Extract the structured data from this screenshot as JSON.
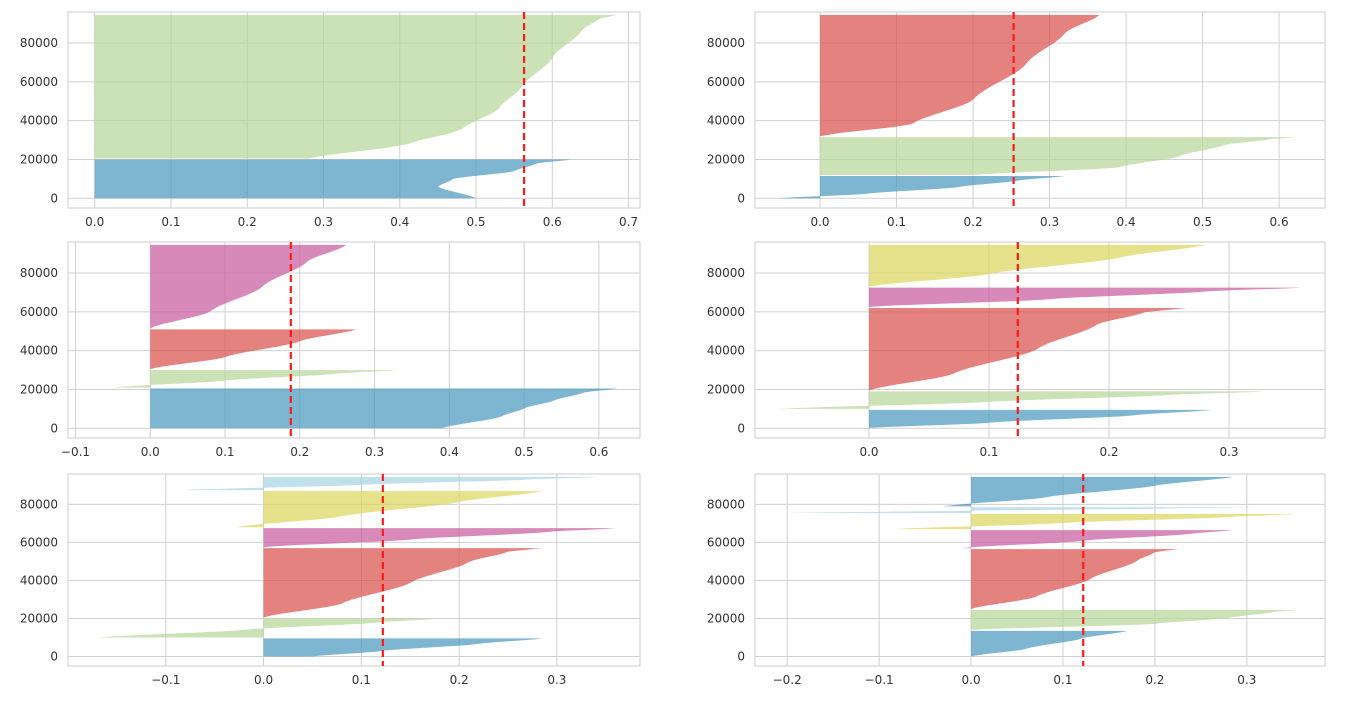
{
  "colors": {
    "cluster_palette": [
      "#4c9abf",
      "#b7d69a",
      "#d9524f",
      "#c75d9f",
      "#dcd760",
      "#a8d4e3"
    ],
    "average_line": "#ff1a1a",
    "grid": "#d0d0d0"
  },
  "chart_data": [
    {
      "type": "area",
      "ylim": [
        -5000,
        96000
      ],
      "xlim": [
        -0.035,
        0.715
      ],
      "xticks": [
        0.0,
        0.1,
        0.2,
        0.3,
        0.4,
        0.5,
        0.6,
        0.7
      ],
      "yticks": [
        0,
        20000,
        40000,
        60000,
        80000
      ],
      "average_silhouette": 0.563,
      "clusters": [
        {
          "color_index": 0,
          "y_start": 0,
          "y_end": 20000,
          "min": 0.0,
          "max": 0.625,
          "profile": [
            [
              0,
              0.5
            ],
            [
              0.3,
              0.45
            ],
            [
              0.5,
              0.47
            ],
            [
              0.7,
              0.55
            ],
            [
              0.9,
              0.58
            ],
            [
              1,
              0.625
            ]
          ]
        },
        {
          "color_index": 1,
          "y_start": 20500,
          "y_end": 94500,
          "min": 0.0,
          "max": 0.685,
          "profile": [
            [
              0,
              0.28
            ],
            [
              0.1,
              0.41
            ],
            [
              0.2,
              0.48
            ],
            [
              0.35,
              0.53
            ],
            [
              0.5,
              0.56
            ],
            [
              0.7,
              0.6
            ],
            [
              0.9,
              0.64
            ],
            [
              0.97,
              0.66
            ],
            [
              1,
              0.685
            ]
          ]
        }
      ]
    },
    {
      "type": "area",
      "ylim": [
        -5000,
        96000
      ],
      "xlim": [
        -0.085,
        0.66
      ],
      "xticks": [
        0.0,
        0.1,
        0.2,
        0.3,
        0.4,
        0.5,
        0.6
      ],
      "yticks": [
        0,
        20000,
        40000,
        60000,
        80000
      ],
      "average_silhouette": 0.253,
      "clusters": [
        {
          "color_index": 0,
          "y_start": 0,
          "y_end": 11500,
          "min": -0.055,
          "max": 0.32,
          "profile": [
            [
              0,
              -0.055
            ],
            [
              0.2,
              0.06
            ],
            [
              0.5,
              0.18
            ],
            [
              0.8,
              0.26
            ],
            [
              1,
              0.32
            ]
          ]
        },
        {
          "color_index": 1,
          "y_start": 12000,
          "y_end": 31500,
          "min": 0.0,
          "max": 0.625,
          "profile": [
            [
              0,
              0.2
            ],
            [
              0.2,
              0.39
            ],
            [
              0.5,
              0.47
            ],
            [
              0.8,
              0.53
            ],
            [
              0.95,
              0.59
            ],
            [
              1,
              0.625
            ]
          ]
        },
        {
          "color_index": 2,
          "y_start": 32000,
          "y_end": 94500,
          "min": 0.0,
          "max": 0.365,
          "profile": [
            [
              0,
              0.0
            ],
            [
              0.1,
              0.12
            ],
            [
              0.3,
              0.2
            ],
            [
              0.6,
              0.27
            ],
            [
              0.85,
              0.32
            ],
            [
              1,
              0.365
            ]
          ]
        }
      ]
    },
    {
      "type": "area",
      "ylim": [
        -5000,
        96000
      ],
      "xlim": [
        -0.11,
        0.655
      ],
      "xticks": [
        -0.1,
        0.0,
        0.1,
        0.2,
        0.3,
        0.4,
        0.5,
        0.6
      ],
      "yticks": [
        0,
        20000,
        40000,
        60000,
        80000
      ],
      "average_silhouette": 0.188,
      "clusters": [
        {
          "color_index": 0,
          "y_start": 0,
          "y_end": 20500,
          "min": 0.0,
          "max": 0.625,
          "profile": [
            [
              0,
              0.39
            ],
            [
              0.3,
              0.47
            ],
            [
              0.5,
              0.5
            ],
            [
              0.7,
              0.54
            ],
            [
              0.9,
              0.58
            ],
            [
              1,
              0.625
            ]
          ]
        },
        {
          "color_index": 1,
          "y_start": 21000,
          "y_end": 30000,
          "min": -0.05,
          "max": 0.33,
          "profile": [
            [
              0,
              -0.05
            ],
            [
              0.4,
              0.1
            ],
            [
              0.8,
              0.25
            ],
            [
              1,
              0.33
            ]
          ]
        },
        {
          "color_index": 2,
          "y_start": 30500,
          "y_end": 51000,
          "min": 0.0,
          "max": 0.275,
          "profile": [
            [
              0,
              0.0
            ],
            [
              0.3,
              0.1
            ],
            [
              0.7,
              0.2
            ],
            [
              1,
              0.275
            ]
          ]
        },
        {
          "color_index": 3,
          "y_start": 51500,
          "y_end": 94500,
          "min": 0.0,
          "max": 0.262,
          "profile": [
            [
              0,
              0.0
            ],
            [
              0.2,
              0.08
            ],
            [
              0.5,
              0.15
            ],
            [
              0.8,
              0.21
            ],
            [
              1,
              0.262
            ]
          ]
        }
      ]
    },
    {
      "type": "area",
      "ylim": [
        -5000,
        96000
      ],
      "xlim": [
        -0.095,
        0.38
      ],
      "xticks": [
        0.0,
        0.1,
        0.2,
        0.3
      ],
      "yticks": [
        0,
        20000,
        40000,
        60000,
        80000
      ],
      "average_silhouette": 0.124,
      "clusters": [
        {
          "color_index": 0,
          "y_start": 0,
          "y_end": 9500,
          "min": -0.005,
          "max": 0.285,
          "profile": [
            [
              0,
              -0.005
            ],
            [
              0.3,
              0.1
            ],
            [
              0.7,
              0.22
            ],
            [
              1,
              0.285
            ]
          ]
        },
        {
          "color_index": 1,
          "y_start": 10000,
          "y_end": 19000,
          "min": -0.075,
          "max": 0.33,
          "profile": [
            [
              0,
              -0.075
            ],
            [
              0.4,
              0.1
            ],
            [
              0.8,
              0.25
            ],
            [
              1,
              0.33
            ]
          ]
        },
        {
          "color_index": 2,
          "y_start": 19500,
          "y_end": 62000,
          "min": 0.0,
          "max": 0.265,
          "profile": [
            [
              0,
              0.0
            ],
            [
              0.2,
              0.07
            ],
            [
              0.5,
              0.14
            ],
            [
              0.8,
              0.19
            ],
            [
              0.95,
              0.23
            ],
            [
              1,
              0.265
            ]
          ]
        },
        {
          "color_index": 3,
          "y_start": 62500,
          "y_end": 72500,
          "min": 0.0,
          "max": 0.36,
          "profile": [
            [
              0,
              0.0
            ],
            [
              0.4,
              0.15
            ],
            [
              0.8,
              0.28
            ],
            [
              1,
              0.36
            ]
          ]
        },
        {
          "color_index": 4,
          "y_start": 73000,
          "y_end": 94500,
          "min": 0.0,
          "max": 0.28,
          "profile": [
            [
              0,
              0.0
            ],
            [
              0.3,
              0.1
            ],
            [
              0.7,
              0.21
            ],
            [
              1,
              0.28
            ]
          ]
        }
      ]
    },
    {
      "type": "area",
      "ylim": [
        -5000,
        96000
      ],
      "xlim": [
        -0.2,
        0.385
      ],
      "xticks": [
        -0.1,
        0.0,
        0.1,
        0.2,
        0.3
      ],
      "yticks": [
        0,
        20000,
        40000,
        60000,
        80000
      ],
      "average_silhouette": 0.122,
      "clusters": [
        {
          "color_index": 0,
          "y_start": 0,
          "y_end": 9500,
          "min": 0.0,
          "max": 0.285,
          "profile": [
            [
              0,
              0.05
            ],
            [
              0.3,
              0.12
            ],
            [
              0.7,
              0.22
            ],
            [
              1,
              0.285
            ]
          ]
        },
        {
          "color_index": 1,
          "y_start": 10000,
          "y_end": 20000,
          "min": -0.17,
          "max": 0.18,
          "profile": [
            [
              0,
              -0.17
            ],
            [
              0.4,
              -0.02
            ],
            [
              0.8,
              0.12
            ],
            [
              1,
              0.18
            ]
          ]
        },
        {
          "color_index": 2,
          "y_start": 20500,
          "y_end": 57000,
          "min": 0.0,
          "max": 0.285,
          "profile": [
            [
              0,
              0.0
            ],
            [
              0.2,
              0.08
            ],
            [
              0.5,
              0.15
            ],
            [
              0.8,
              0.21
            ],
            [
              0.95,
              0.25
            ],
            [
              1,
              0.285
            ]
          ]
        },
        {
          "color_index": 3,
          "y_start": 57500,
          "y_end": 67500,
          "min": 0.0,
          "max": 0.36,
          "profile": [
            [
              0,
              0.0
            ],
            [
              0.4,
              0.15
            ],
            [
              0.8,
              0.29
            ],
            [
              1,
              0.36
            ]
          ]
        },
        {
          "color_index": 4,
          "y_start": 68000,
          "y_end": 87000,
          "min": -0.028,
          "max": 0.285,
          "profile": [
            [
              0,
              -0.028
            ],
            [
              0.3,
              0.08
            ],
            [
              0.7,
              0.2
            ],
            [
              1,
              0.285
            ]
          ]
        },
        {
          "color_index": 5,
          "y_start": 87500,
          "y_end": 94500,
          "min": -0.085,
          "max": 0.345,
          "profile": [
            [
              0,
              -0.085
            ],
            [
              0.4,
              0.1
            ],
            [
              0.8,
              0.27
            ],
            [
              1,
              0.345
            ]
          ]
        }
      ]
    },
    {
      "type": "area",
      "ylim": [
        -5000,
        96000
      ],
      "xlim": [
        -0.235,
        0.385
      ],
      "xticks": [
        -0.2,
        -0.1,
        0.0,
        0.1,
        0.2,
        0.3
      ],
      "yticks": [
        0,
        20000,
        40000,
        60000,
        80000
      ],
      "average_silhouette": 0.122,
      "clusters": [
        {
          "color_index": 0,
          "y_start": 0,
          "y_end": 13500,
          "min": 0.0,
          "max": 0.17,
          "profile": [
            [
              0,
              0.0
            ],
            [
              0.3,
              0.06
            ],
            [
              0.7,
              0.12
            ],
            [
              1,
              0.17
            ]
          ]
        },
        {
          "color_index": 1,
          "y_start": 14000,
          "y_end": 24500,
          "min": 0.0,
          "max": 0.355,
          "profile": [
            [
              0,
              0.0
            ],
            [
              0.3,
              0.2
            ],
            [
              0.6,
              0.28
            ],
            [
              0.9,
              0.33
            ],
            [
              1,
              0.355
            ]
          ]
        },
        {
          "color_index": 2,
          "y_start": 25000,
          "y_end": 56500,
          "min": 0.0,
          "max": 0.225,
          "profile": [
            [
              0,
              0.0
            ],
            [
              0.2,
              0.07
            ],
            [
              0.5,
              0.13
            ],
            [
              0.8,
              0.18
            ],
            [
              0.95,
              0.2
            ],
            [
              1,
              0.225
            ]
          ]
        },
        {
          "color_index": 3,
          "y_start": 57000,
          "y_end": 66500,
          "min": -0.01,
          "max": 0.285,
          "profile": [
            [
              0,
              -0.01
            ],
            [
              0.4,
              0.12
            ],
            [
              0.8,
              0.24
            ],
            [
              1,
              0.285
            ]
          ]
        },
        {
          "color_index": 4,
          "y_start": 67000,
          "y_end": 75000,
          "min": -0.085,
          "max": 0.355,
          "profile": [
            [
              0,
              -0.085
            ],
            [
              0.4,
              0.1
            ],
            [
              0.8,
              0.28
            ],
            [
              1,
              0.355
            ]
          ]
        },
        {
          "color_index": 5,
          "y_start": 75500,
          "y_end": 78500,
          "min": -0.2,
          "max": 0.31,
          "profile": [
            [
              0,
              -0.2
            ],
            [
              0.4,
              0.0
            ],
            [
              0.8,
              0.22
            ],
            [
              1,
              0.31
            ]
          ]
        },
        {
          "color_index": 0,
          "y_start": 79000,
          "y_end": 94500,
          "min": -0.03,
          "max": 0.285,
          "profile": [
            [
              0,
              -0.03
            ],
            [
              0.3,
              0.08
            ],
            [
              0.7,
              0.2
            ],
            [
              1,
              0.285
            ]
          ]
        }
      ]
    }
  ]
}
